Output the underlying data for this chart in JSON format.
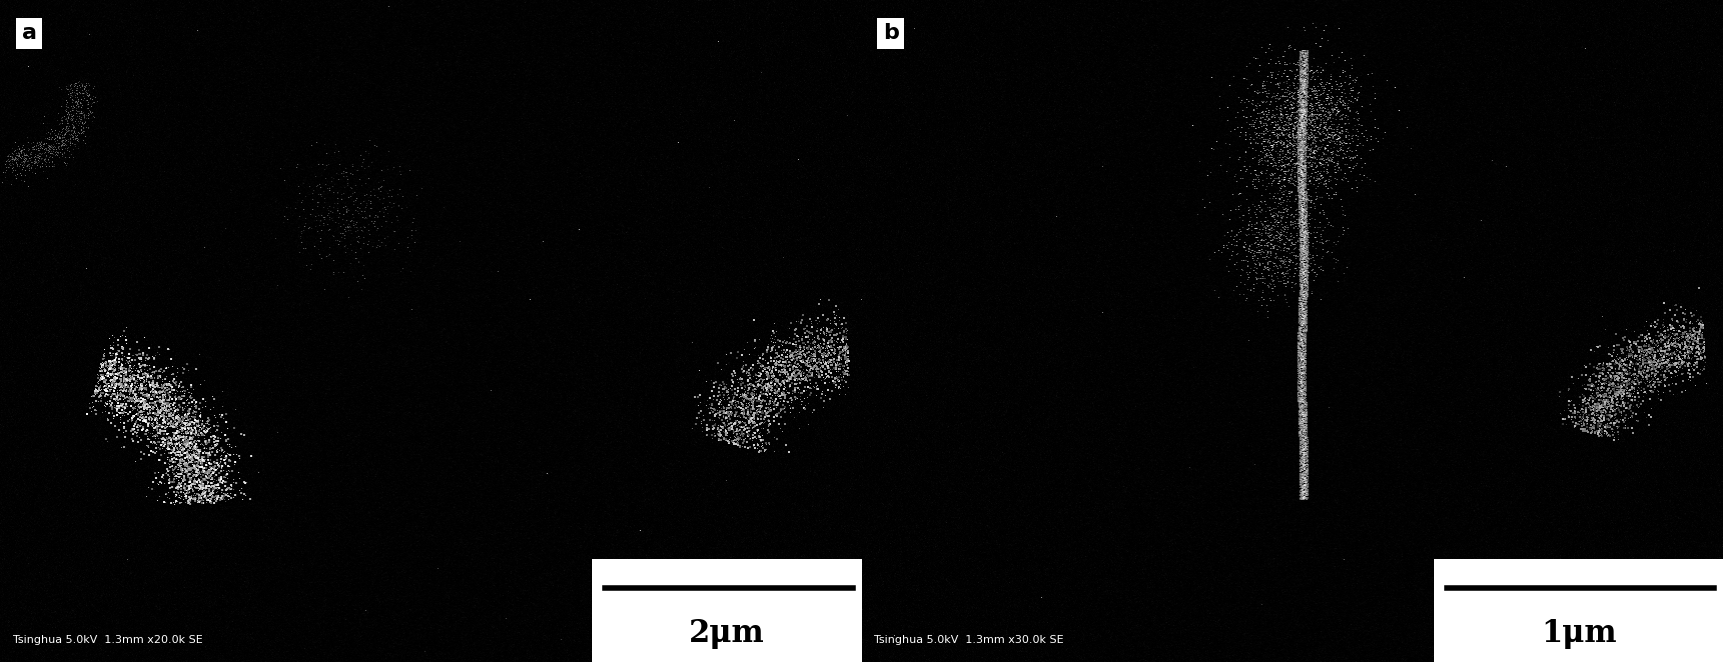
{
  "figsize": [
    17.23,
    6.62
  ],
  "dpi": 100,
  "background_color": "#000000",
  "panel_a": {
    "label": "a",
    "scalebar_text": "2μm",
    "meta_text": "Tsinghua 5.0kV  1.3mm x20.0k SE"
  },
  "panel_b": {
    "label": "b",
    "scalebar_text": "1μm",
    "meta_text": "Tsinghua 5.0kV  1.3mm x30.0k SE"
  },
  "label_fontsize": 16,
  "scalebar_fontsize": 22,
  "meta_fontsize": 8,
  "meta_text_color": "#ffffff"
}
